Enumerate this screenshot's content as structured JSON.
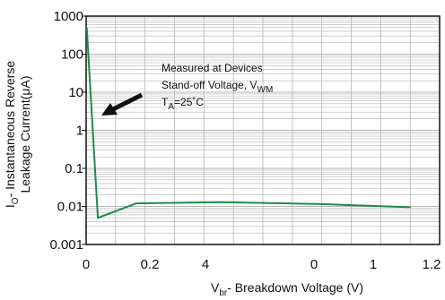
{
  "chart_data": {
    "type": "line",
    "title": "",
    "xlabel": {
      "prefix": "V",
      "sub": "br",
      "suffix": "-  Breakdown Voltage (V)"
    },
    "ylabel": {
      "line1_prefix": "I",
      "line1_sub": "O",
      "line1_suffix": "- Instantaneous Reverse",
      "line2": "Leakage Current(μA)"
    },
    "x_tick_labels": [
      "0",
      "0.2",
      "4",
      "0",
      "1",
      "1.2"
    ],
    "y_tick_labels": [
      "0.001",
      "0.01",
      "0.1",
      "1",
      "10",
      "100",
      "1000"
    ],
    "y_scale": "log",
    "ylim": [
      0.001,
      1000
    ],
    "grid": true,
    "series": [
      {
        "color": "#1f8a4c",
        "points": [
          {
            "x": 0.002,
            "y": 500
          },
          {
            "x": 0.04,
            "y": 0.005
          },
          {
            "x": 0.17,
            "y": 0.012
          },
          {
            "x": 0.45,
            "y": 0.013
          },
          {
            "x": 0.8,
            "y": 0.0115
          },
          {
            "x": 1.1,
            "y": 0.0095
          }
        ]
      }
    ],
    "annotation": {
      "line1": "Measured at Devices",
      "line2_prefix": "Stand-off Voltage, V",
      "line2_sub": "WM",
      "line3_prefix": "T",
      "line3_sub": "A",
      "line3_suffix": "=25˚C"
    },
    "colors": {
      "series": "#1f8a4c",
      "grid": "#b5b5b5",
      "axes": "#111111",
      "arrow": "#111111"
    }
  }
}
